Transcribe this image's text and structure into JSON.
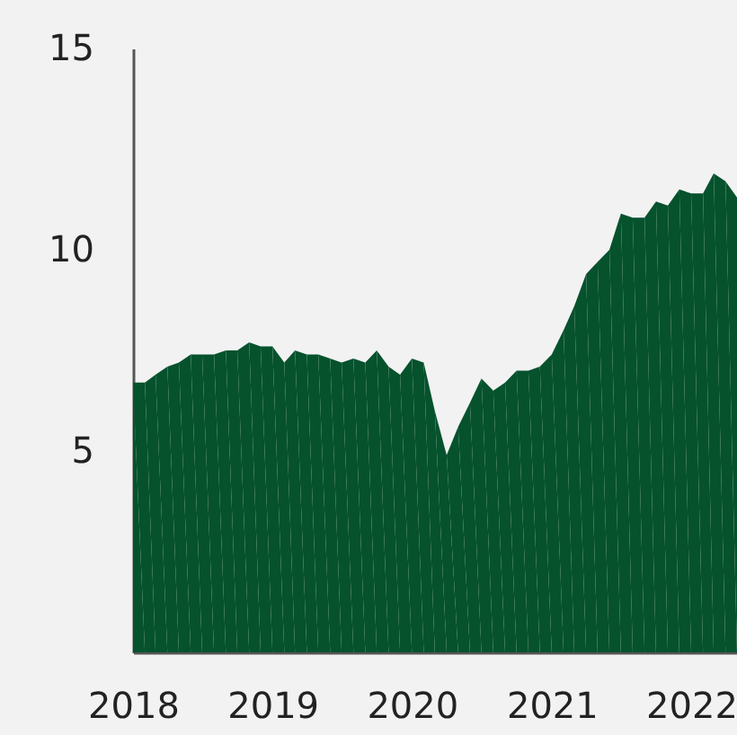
{
  "chart_data": {
    "type": "area",
    "x": [
      "2018-01",
      "2018-02",
      "2018-03",
      "2018-04",
      "2018-05",
      "2018-06",
      "2018-07",
      "2018-08",
      "2018-09",
      "2018-10",
      "2018-11",
      "2018-12",
      "2019-01",
      "2019-02",
      "2019-03",
      "2019-04",
      "2019-05",
      "2019-06",
      "2019-07",
      "2019-08",
      "2019-09",
      "2019-10",
      "2019-11",
      "2019-12",
      "2020-01",
      "2020-02",
      "2020-03",
      "2020-04",
      "2020-05",
      "2020-06",
      "2020-07",
      "2020-08",
      "2020-09",
      "2020-10",
      "2020-11",
      "2020-12",
      "2021-01",
      "2021-02",
      "2021-03",
      "2021-04",
      "2021-05",
      "2021-06",
      "2021-07",
      "2021-08",
      "2021-09",
      "2021-10",
      "2021-11",
      "2021-12",
      "2022-01",
      "2022-02",
      "2022-03",
      "2022-04",
      "2022-05"
    ],
    "series": [
      {
        "color": "#06522d",
        "values": [
          6.7,
          6.7,
          6.9,
          7.1,
          7.2,
          7.4,
          7.4,
          7.4,
          7.5,
          7.5,
          7.7,
          7.6,
          7.6,
          7.2,
          7.5,
          7.4,
          7.4,
          7.3,
          7.2,
          7.3,
          7.2,
          7.5,
          7.1,
          6.9,
          7.3,
          7.2,
          6.0,
          4.9,
          5.6,
          6.2,
          6.8,
          6.5,
          6.7,
          7.0,
          7.0,
          7.1,
          7.4,
          8.0,
          8.6,
          9.4,
          9.7,
          10.0,
          10.9,
          10.8,
          10.8,
          11.2,
          11.1,
          11.5,
          11.4,
          11.4,
          11.9,
          11.7,
          11.3
        ]
      }
    ],
    "xlim": [
      "2018-01",
      "2022-05"
    ],
    "xticks": [
      "2018",
      "2019",
      "2020",
      "2021",
      "2022"
    ],
    "ylim": [
      0,
      15
    ],
    "yticks": [
      5,
      10,
      15
    ],
    "grid": false
  }
}
